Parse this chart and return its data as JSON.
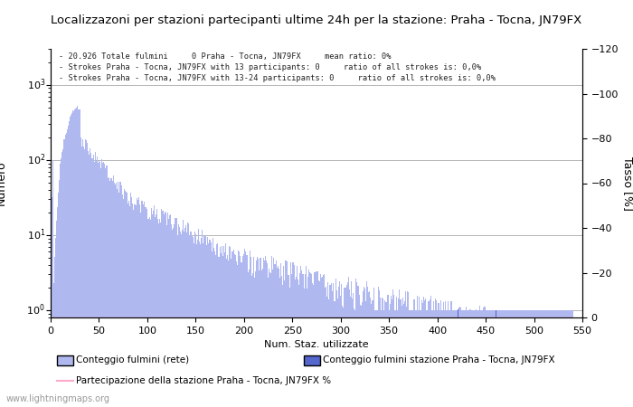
{
  "title": "Localizzazoni per stazioni partecipanti ultime 24h per la stazione: Praha - Tocna, JN79FX",
  "xlabel": "Num. Staz. utilizzate",
  "ylabel_left": "Numero",
  "ylabel_right": "Tasso [%]",
  "annotation_lines": [
    "20.926 Totale fulmini     0 Praha - Tocna, JN79FX     mean ratio: 0%",
    "Strokes Praha - Tocna, JN79FX with 13 participants: 0     ratio of all strokes is: 0,0%",
    "Strokes Praha - Tocna, JN79FX with 13-24 participants: 0     ratio of all strokes is: 0,0%"
  ],
  "bar_color_light": "#b0b8f0",
  "bar_color_dark": "#5566cc",
  "line_color_pink": "#ffaacc",
  "grid_color": "#aaaaaa",
  "background_color": "#ffffff",
  "xlim": [
    0,
    550
  ],
  "ylim_right": [
    0,
    120
  ],
  "right_yticks": [
    0,
    20,
    40,
    60,
    80,
    100,
    120
  ],
  "watermark": "www.lightningmaps.org",
  "legend_label_light": "Conteggio fulmini (rete)",
  "legend_label_dark": "Conteggio fulmini stazione Praha - Tocna, JN79FX",
  "legend_label_line": "Partecipazione della stazione Praha - Tocna, JN79FX %"
}
